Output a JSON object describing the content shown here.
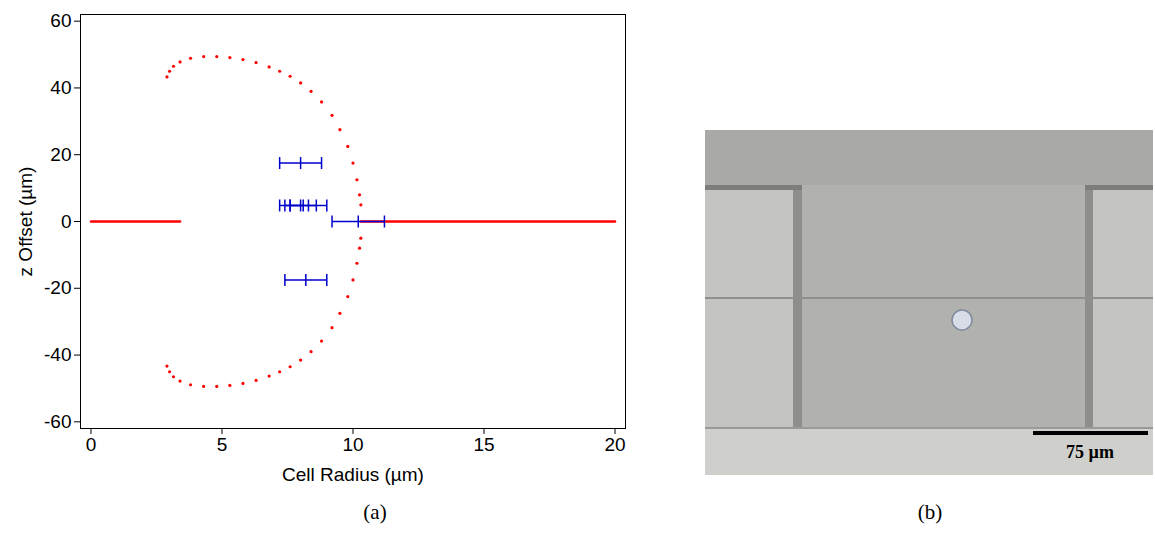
{
  "chart_data": {
    "type": "scatter",
    "caption": "(a)",
    "xlabel": "Cell Radius (µm)",
    "ylabel": "z Offset (µm)",
    "xlim": [
      -0.4,
      20.4
    ],
    "xticks": [
      0,
      5,
      10,
      15,
      20
    ],
    "ylim": [
      -62,
      62
    ],
    "yticks": [
      -60,
      -40,
      -20,
      0,
      20,
      40,
      60
    ],
    "grid": false,
    "series": [
      {
        "type": "line",
        "color": "#ff0000",
        "line_style": "solid",
        "x": [
          0,
          3.4
        ],
        "y": [
          0,
          0
        ]
      },
      {
        "type": "line",
        "color": "#ff0000",
        "line_style": "solid",
        "x": [
          10.3,
          20
        ],
        "y": [
          0,
          0
        ]
      },
      {
        "type": "scatter",
        "marker": "dot",
        "color": "#ff0000",
        "x": [
          2.9,
          3.0,
          3.15,
          3.4,
          3.8,
          4.3,
          4.8,
          5.3,
          5.8,
          6.3,
          6.8,
          7.2,
          7.6,
          8.0,
          8.4,
          8.8,
          9.2,
          9.5,
          9.8,
          10.0,
          10.15,
          10.25,
          10.3,
          2.9,
          3.0,
          3.15,
          3.4,
          3.8,
          4.3,
          4.8,
          5.3,
          5.8,
          6.3,
          6.8,
          7.2,
          7.6,
          8.0,
          8.4,
          8.8,
          9.2,
          9.5,
          9.8,
          10.0,
          10.15,
          10.25,
          10.3
        ],
        "y": [
          43.3,
          45,
          46.5,
          47.8,
          48.9,
          49.4,
          49.4,
          49.1,
          48.5,
          47.6,
          46.3,
          45.0,
          43.5,
          41.5,
          39.0,
          35.8,
          31.8,
          27.5,
          22.5,
          17.5,
          12.5,
          8,
          5,
          -43.3,
          -45,
          -46.5,
          -47.8,
          -48.9,
          -49.4,
          -49.4,
          -49.1,
          -48.5,
          -47.6,
          -46.3,
          -45.0,
          -43.5,
          -41.5,
          -39.0,
          -35.8,
          -31.8,
          -27.5,
          -22.5,
          -17.5,
          -12.5,
          -8,
          -5
        ]
      },
      {
        "type": "scatter",
        "marker": "errorbar",
        "color": "#0000cc",
        "x": [
          8.0,
          7.6,
          8.0,
          8.3,
          10.2,
          8.2
        ],
        "y": [
          17.5,
          4.8,
          4.8,
          4.8,
          0,
          -17.5
        ],
        "x_low": [
          7.2,
          7.2,
          7.4,
          7.6,
          9.2,
          7.4
        ],
        "x_high": [
          8.8,
          8.1,
          8.6,
          9.0,
          11.2,
          9.0
        ]
      }
    ]
  },
  "image": {
    "caption": "(b)",
    "scale_bar": "75 µm"
  }
}
